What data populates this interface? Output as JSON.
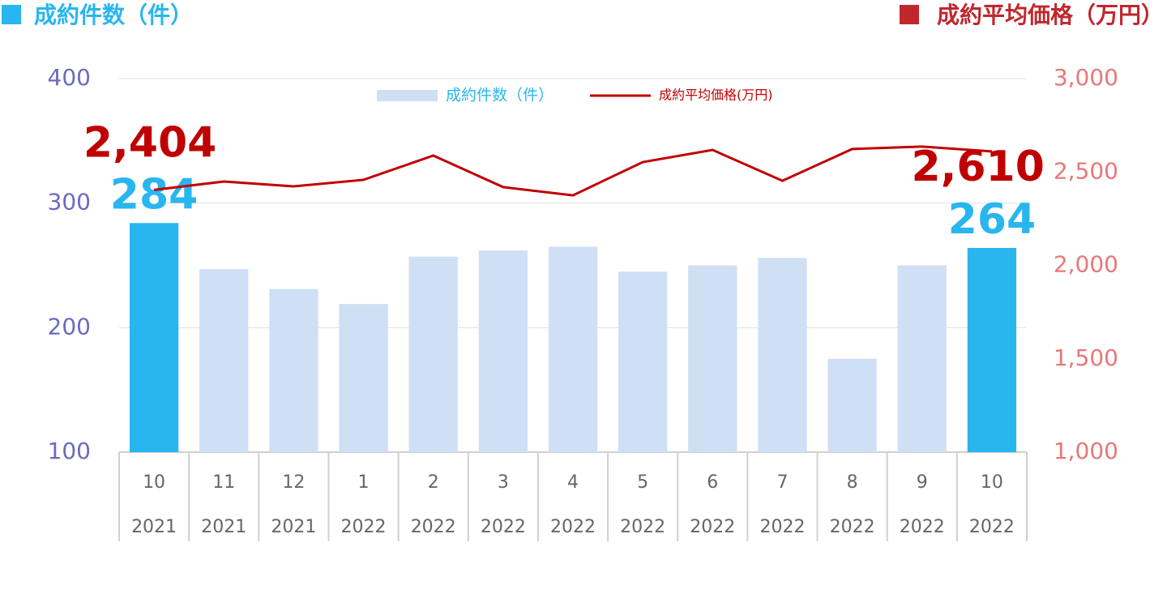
{
  "chart_data": {
    "type": "bar-line",
    "left_axis_title": "成約件数（件）",
    "right_axis_title": "成約平均価格（万円）",
    "categories": [
      "10",
      "11",
      "12",
      "1",
      "2",
      "3",
      "4",
      "5",
      "6",
      "7",
      "8",
      "9",
      "10"
    ],
    "category_years": [
      "2021",
      "2021",
      "2021",
      "2022",
      "2022",
      "2022",
      "2022",
      "2022",
      "2022",
      "2022",
      "2022",
      "2022",
      "2022"
    ],
    "series": [
      {
        "name": "成約件数（件）",
        "type": "bar",
        "color": "#cfe0f5",
        "highlight_color": "#29b6ef",
        "colors": [
          "#29b6ef",
          "#cfe0f5",
          "#cfe0f5",
          "#cfe0f5",
          "#cfe0f5",
          "#cfe0f5",
          "#cfe0f5",
          "#cfe0f5",
          "#cfe0f5",
          "#cfe0f5",
          "#cfe0f5",
          "#cfe0f5",
          "#29b6ef"
        ],
        "values": [
          284,
          247,
          231,
          219,
          257,
          262,
          265,
          245,
          250,
          256,
          175,
          250,
          264
        ],
        "value_labels": [
          "284",
          null,
          null,
          null,
          null,
          null,
          null,
          null,
          null,
          null,
          null,
          null,
          "264"
        ]
      },
      {
        "name": "成約平均価格(万円)",
        "type": "line",
        "axis": "y2",
        "color": "#c00000",
        "values": [
          2404,
          2449,
          2423,
          2458,
          2588,
          2419,
          2375,
          2553,
          2618,
          2453,
          2623,
          2636,
          2610
        ],
        "value_labels": [
          "2,404",
          null,
          null,
          null,
          null,
          null,
          null,
          null,
          null,
          null,
          null,
          null,
          "2,610"
        ]
      }
    ],
    "ylim": [
      100,
      400
    ],
    "yticks": [
      100,
      200,
      300,
      400
    ],
    "y2lim": [
      1000,
      3000
    ],
    "y2ticks": [
      {
        "value": 1000,
        "label": "1,000"
      },
      {
        "value": 1500,
        "label": "1,500"
      },
      {
        "value": 2000,
        "label": "2,000"
      },
      {
        "value": 2500,
        "label": "2,500"
      },
      {
        "value": 3000,
        "label": "3,000"
      }
    ],
    "grid": true,
    "legend": "top"
  }
}
